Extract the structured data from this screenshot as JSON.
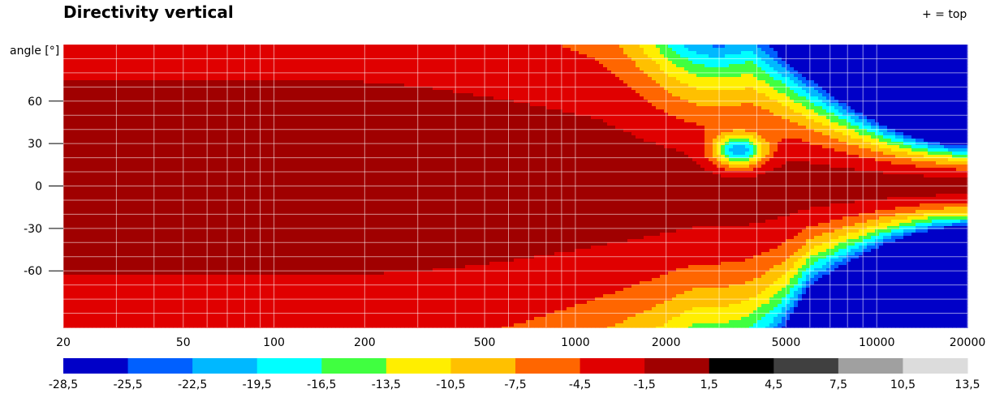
{
  "title": "Directivity vertical",
  "orientation_note": "+ = top",
  "chart_data": {
    "type": "heatmap",
    "title": "Directivity vertical",
    "ylabel": "angle [°]",
    "xlabel": "",
    "x_scale": "log",
    "xlim": [
      20,
      20000
    ],
    "ylim": [
      -100,
      100
    ],
    "x_ticks": [
      20,
      50,
      100,
      200,
      500,
      1000,
      2000,
      5000,
      10000,
      20000
    ],
    "x_tick_labels": [
      "20",
      "50",
      "100",
      "200",
      "500",
      "1000",
      "2000",
      "5000",
      "10000",
      "20000"
    ],
    "y_ticks": [
      60,
      30,
      0,
      -30,
      -60
    ],
    "y_tick_labels": [
      "60",
      "30",
      "0",
      "-30",
      "-60"
    ],
    "grid": true,
    "colorscale": {
      "boundaries": [
        "-28,5",
        "-25,5",
        "-22,5",
        "-19,5",
        "-16,5",
        "-13,5",
        "-10,5",
        "-7,5",
        "-4,5",
        "-1,5",
        "1,5",
        "4,5",
        "7,5",
        "10,5",
        "13,5"
      ],
      "colors": [
        "#0000c8",
        "#0060ff",
        "#00b8ff",
        "#00ffff",
        "#40ff40",
        "#ffee00",
        "#ffc000",
        "#ff6600",
        "#e00000",
        "#a00000",
        "#000000",
        "#404040",
        "#a0a0a0",
        "#dcdcdc"
      ]
    },
    "regions_description": {
      "base_level_dB": "-1,5 to 1,5 (dark red) across all angles below ~150 Hz",
      "top_rolloff": "lobes narrow upward above ~150 Hz; below -28,5 dB region near +90° above ~10 kHz",
      "bottom_rolloff": "lobes narrow downward above ~200 Hz; -22,5 to -28,5 dB region near -90° above ~12 kHz",
      "notch": "local dip to about -22 dB near +25° at ~3.5 kHz"
    }
  }
}
